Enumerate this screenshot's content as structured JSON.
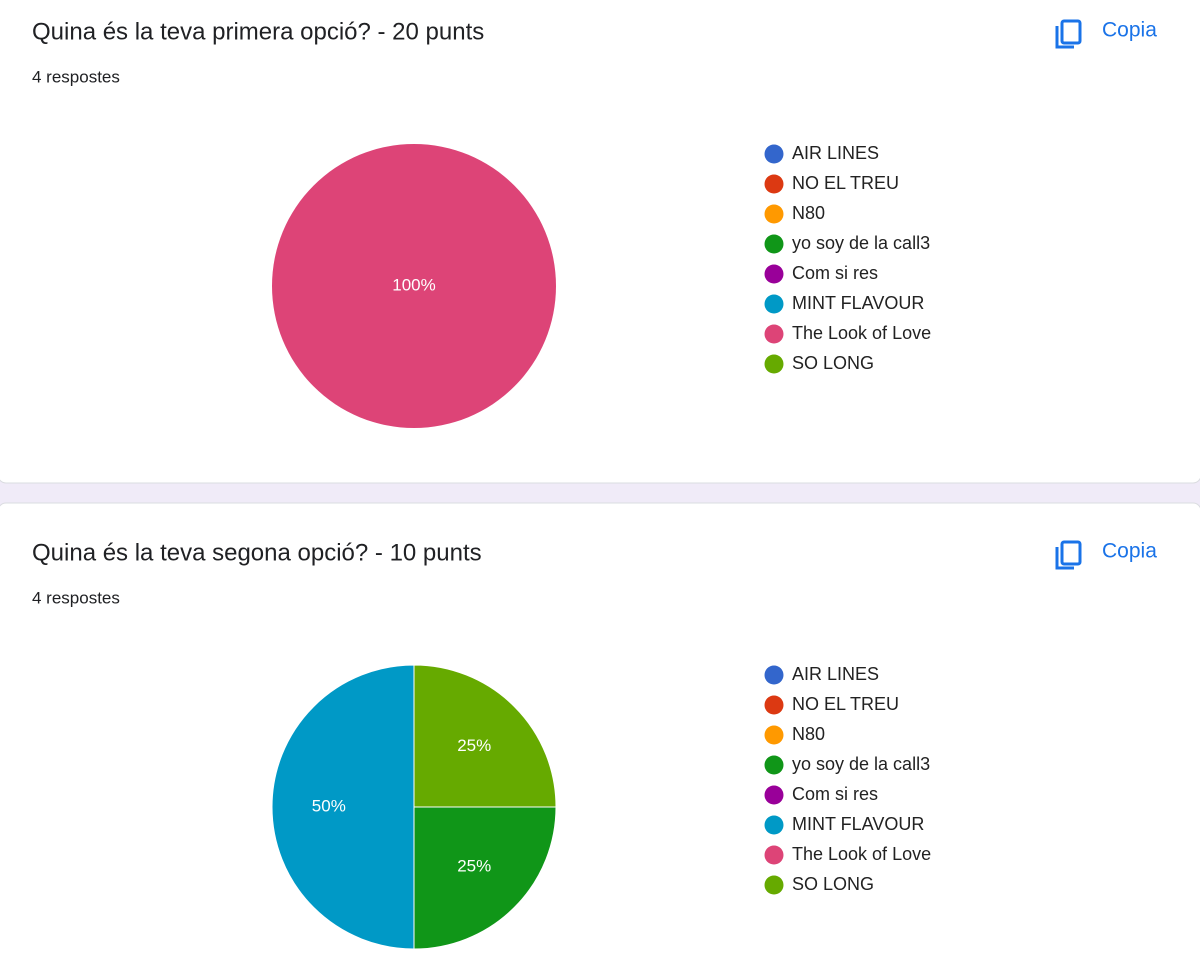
{
  "chart_data": [
    {
      "type": "pie",
      "title": "Quina és la teva primera opció? - 20 punts",
      "subtitle": "4 respostes",
      "button_label": "Copia",
      "categories": [
        "AIR LINES",
        "NO EL TREU",
        "N80",
        "yo soy de la call3",
        "Com si res",
        "MINT FLAVOUR",
        "The Look of Love",
        "SO LONG"
      ],
      "values": [
        0,
        0,
        0,
        0,
        0,
        0,
        100,
        0
      ],
      "value_labels": [
        null,
        null,
        null,
        null,
        null,
        null,
        "100%",
        null
      ],
      "colors": [
        "#3366cc",
        "#dc3912",
        "#ff9900",
        "#109618",
        "#990099",
        "#0099c6",
        "#dd4477",
        "#66aa00"
      ]
    },
    {
      "type": "pie",
      "title": "Quina és la teva segona opció? - 10 punts",
      "subtitle": "4 respostes",
      "button_label": "Copia",
      "categories": [
        "AIR LINES",
        "NO EL TREU",
        "N80",
        "yo soy de la call3",
        "Com si res",
        "MINT FLAVOUR",
        "The Look of Love",
        "SO LONG"
      ],
      "values": [
        0,
        0,
        0,
        25,
        0,
        50,
        0,
        25
      ],
      "value_labels": [
        null,
        null,
        null,
        "25%",
        null,
        "50%",
        null,
        "25%"
      ],
      "colors": [
        "#3366cc",
        "#dc3912",
        "#ff9900",
        "#109618",
        "#990099",
        "#0099c6",
        "#dd4477",
        "#66aa00"
      ]
    }
  ]
}
